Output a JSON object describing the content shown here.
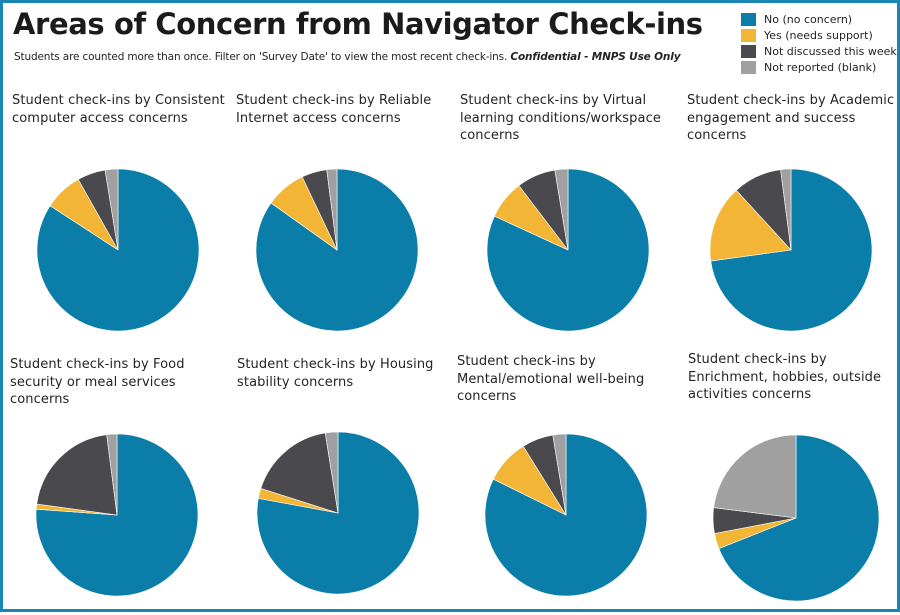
{
  "header": {
    "title": "Areas of Concern from Navigator Check-ins",
    "subtitle_note": "Students are counted more than once. Filter on 'Survey Date' to view the most recent check-ins.",
    "subtitle_confidential": "Confidential - MNPS Use Only"
  },
  "legend": [
    {
      "label": "No (no concern)",
      "color": "#0a7ea8"
    },
    {
      "label": "Yes (needs support)",
      "color": "#f2b535"
    },
    {
      "label": "Not discussed this week",
      "color": "#4a4a4e"
    },
    {
      "label": "Not reported (blank)",
      "color": "#a0a0a0"
    }
  ],
  "chart_data": [
    {
      "type": "pie",
      "title": "Student check-ins by Consistent computer access concerns",
      "categories": [
        "No (no concern)",
        "Yes (needs support)",
        "Not discussed this week",
        "Not reported (blank)"
      ],
      "values": [
        82.5,
        7.5,
        5.5,
        2.5
      ]
    },
    {
      "type": "pie",
      "title": "Student check-ins by Reliable Internet access concerns",
      "categories": [
        "No (no concern)",
        "Yes (needs support)",
        "Not discussed this week",
        "Not reported (blank)"
      ],
      "values": [
        84,
        8,
        5,
        2
      ]
    },
    {
      "type": "pie",
      "title": "Student check-ins by Virtual learning conditions/workspace concerns",
      "categories": [
        "No (no concern)",
        "Yes (needs support)",
        "Not discussed this week",
        "Not reported (blank)"
      ],
      "values": [
        79,
        7.5,
        7.5,
        2.5
      ]
    },
    {
      "type": "pie",
      "title": "Student check-ins by Academic engagement and success concerns",
      "categories": [
        "No (no concern)",
        "Yes (needs support)",
        "Not discussed this week",
        "Not reported (blank)"
      ],
      "values": [
        71,
        15,
        9.5,
        2
      ]
    },
    {
      "type": "pie",
      "title": "Student check-ins by Food security or meal services concerns",
      "categories": [
        "No (no concern)",
        "Yes (needs support)",
        "Not discussed this week",
        "Not reported (blank)"
      ],
      "values": [
        75,
        1,
        20.5,
        2
      ]
    },
    {
      "type": "pie",
      "title": "Student check-ins by Housing stability concerns",
      "categories": [
        "No (no concern)",
        "Yes (needs support)",
        "Not discussed this week",
        "Not reported (blank)"
      ],
      "values": [
        77.5,
        2,
        17.5,
        2.5
      ]
    },
    {
      "type": "pie",
      "title": "Student check-ins by Mental/emotional well-being concerns",
      "categories": [
        "No (no concern)",
        "Yes (needs support)",
        "Not discussed this week",
        "Not reported (blank)"
      ],
      "values": [
        79,
        8.5,
        6,
        2.5
      ]
    },
    {
      "type": "pie",
      "title": "Student check-ins by Enrichment, hobbies, outside activities concerns",
      "categories": [
        "No (no concern)",
        "Yes (needs support)",
        "Not discussed this week",
        "Not reported (blank)"
      ],
      "values": [
        69,
        3,
        5,
        23
      ]
    }
  ]
}
